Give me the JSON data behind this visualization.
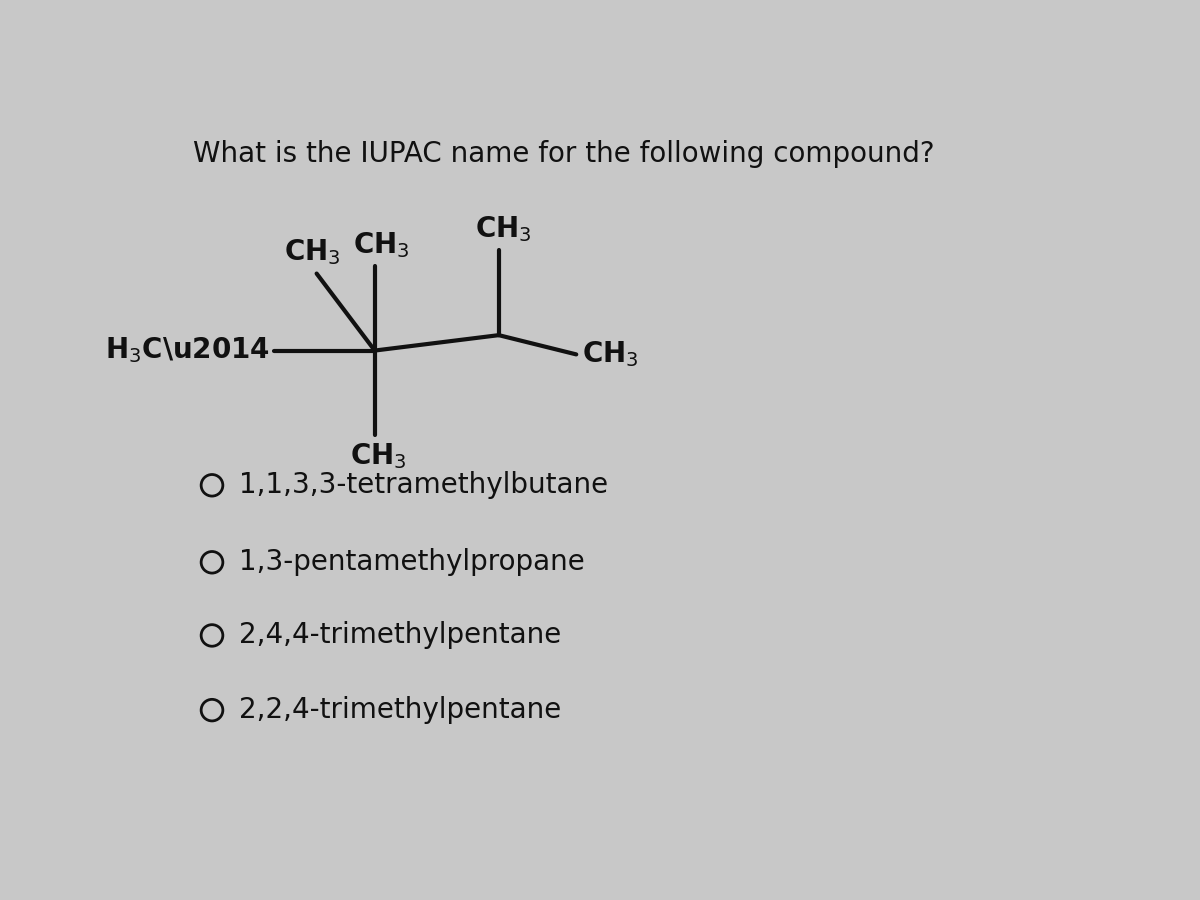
{
  "title": "What is the IUPAC name for the following compound?",
  "title_fontsize": 20,
  "background_color": "#c8c8c8",
  "text_color": "#111111",
  "options": [
    "1,1,3,3-tetramethylbutane",
    "1,3-pentamethylpropane",
    "2,4,4-trimethylpentane",
    "2,2,4-trimethylpentane"
  ],
  "options_fontsize": 20,
  "struct_fontsize": 20,
  "line_width": 3.0,
  "line_color": "#111111",
  "circle_r": 14
}
